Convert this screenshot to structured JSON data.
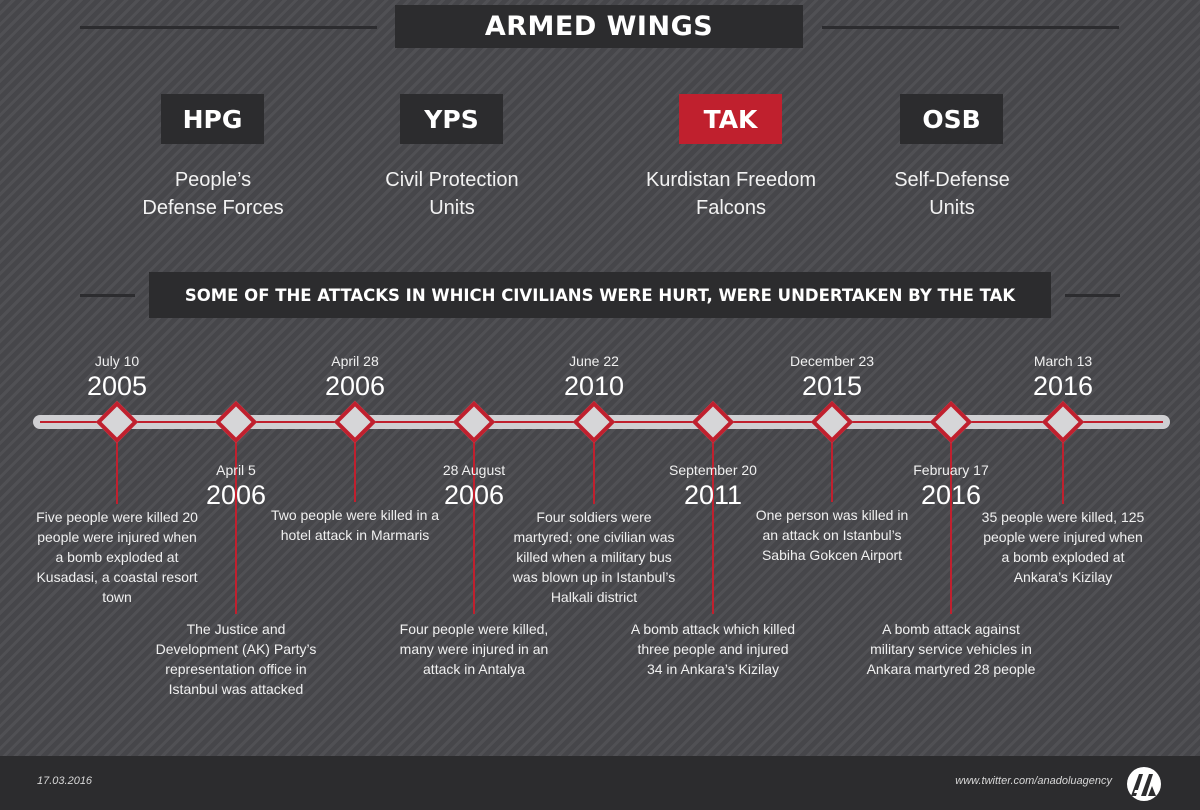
{
  "header": {
    "title": "ARMED WINGS"
  },
  "wings": [
    {
      "abbr": "HPG",
      "name_line1": "People’s",
      "name_line2": "Defense Forces",
      "highlight": false
    },
    {
      "abbr": "YPS",
      "name_line1": "Civil Protection",
      "name_line2": "Units",
      "highlight": false
    },
    {
      "abbr": "TAK",
      "name_line1": "Kurdistan Freedom",
      "name_line2": "Falcons",
      "highlight": true
    },
    {
      "abbr": "OSB",
      "name_line1": "Self-Defense",
      "name_line2": "Units",
      "highlight": false
    }
  ],
  "subtitle": "SOME OF THE ATTACKS IN WHICH CIVILIANS WERE HURT, WERE UNDERTAKEN BY THE TAK",
  "events": [
    {
      "date": "July 10",
      "year": "2005",
      "description": "Five people were killed 20 people were injured when a bomb exploded at Kusadasi, a coastal resort town"
    },
    {
      "date": "April 5",
      "year": "2006",
      "description": "The Justice and Development (AK) Party’s representation office in Istanbul was attacked"
    },
    {
      "date": "April 28",
      "year": "2006",
      "description": "Two people were killed in a hotel attack in Marmaris"
    },
    {
      "date": "28 August",
      "year": "2006",
      "description": "Four people were killed, many were injured in an attack in Antalya"
    },
    {
      "date": "June 22",
      "year": "2010",
      "description": "Four soldiers were martyred; one civilian was killed when a military bus was blown up in Istanbul’s Halkali district"
    },
    {
      "date": "September 20",
      "year": "2011",
      "description": "A bomb attack which killed three people and injured 34 in Ankara’s Kizilay"
    },
    {
      "date": "December 23",
      "year": "2015",
      "description": "One person was killed in an attack on Istanbul’s Sabiha Gokcen Airport"
    },
    {
      "date": "February 17",
      "year": "2016",
      "description": "A bomb attack against military service vehicles in Ankara martyred 28 people"
    },
    {
      "date": "March 13",
      "year": "2016",
      "description": "35 people were killed,  125 people were injured when a bomb exploded at Ankara’s Kizilay"
    }
  ],
  "footer": {
    "date": "17.03.2016",
    "url": "www.twitter.com/anadoluagency",
    "logo_icon": "anadolu-agency-logo-icon"
  },
  "colors": {
    "accent": "#c0202e",
    "background": "#4a4a4e",
    "panel": "#2c2c2e",
    "track": "#cfcfd2"
  }
}
